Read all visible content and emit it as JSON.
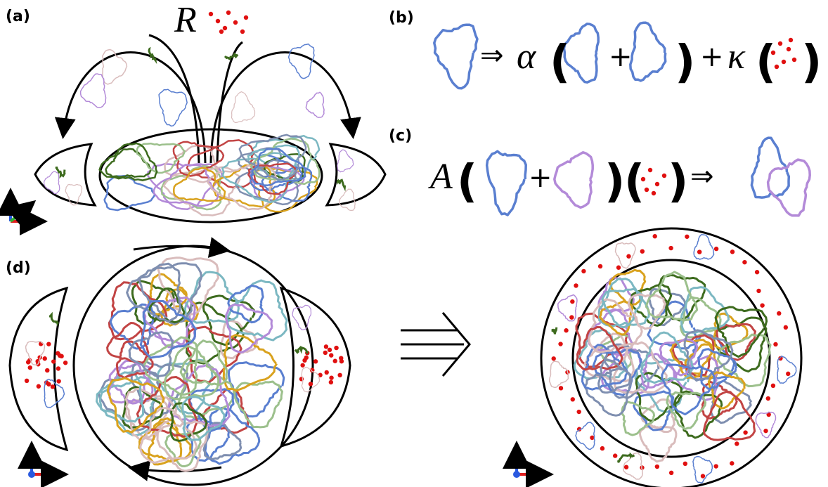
{
  "panel_a": {
    "label": "(a)",
    "symbol": "R"
  },
  "panel_b": {
    "label": "(b)",
    "terms": [
      "⇒",
      "α",
      "(",
      "+",
      ")",
      "+",
      "κ",
      "(",
      ")"
    ]
  },
  "panel_c": {
    "label": "(c)",
    "terms": [
      "A",
      "(",
      "+",
      ")",
      "(",
      ")",
      "⇒"
    ]
  },
  "panel_d": {
    "label": "(d)"
  }
}
